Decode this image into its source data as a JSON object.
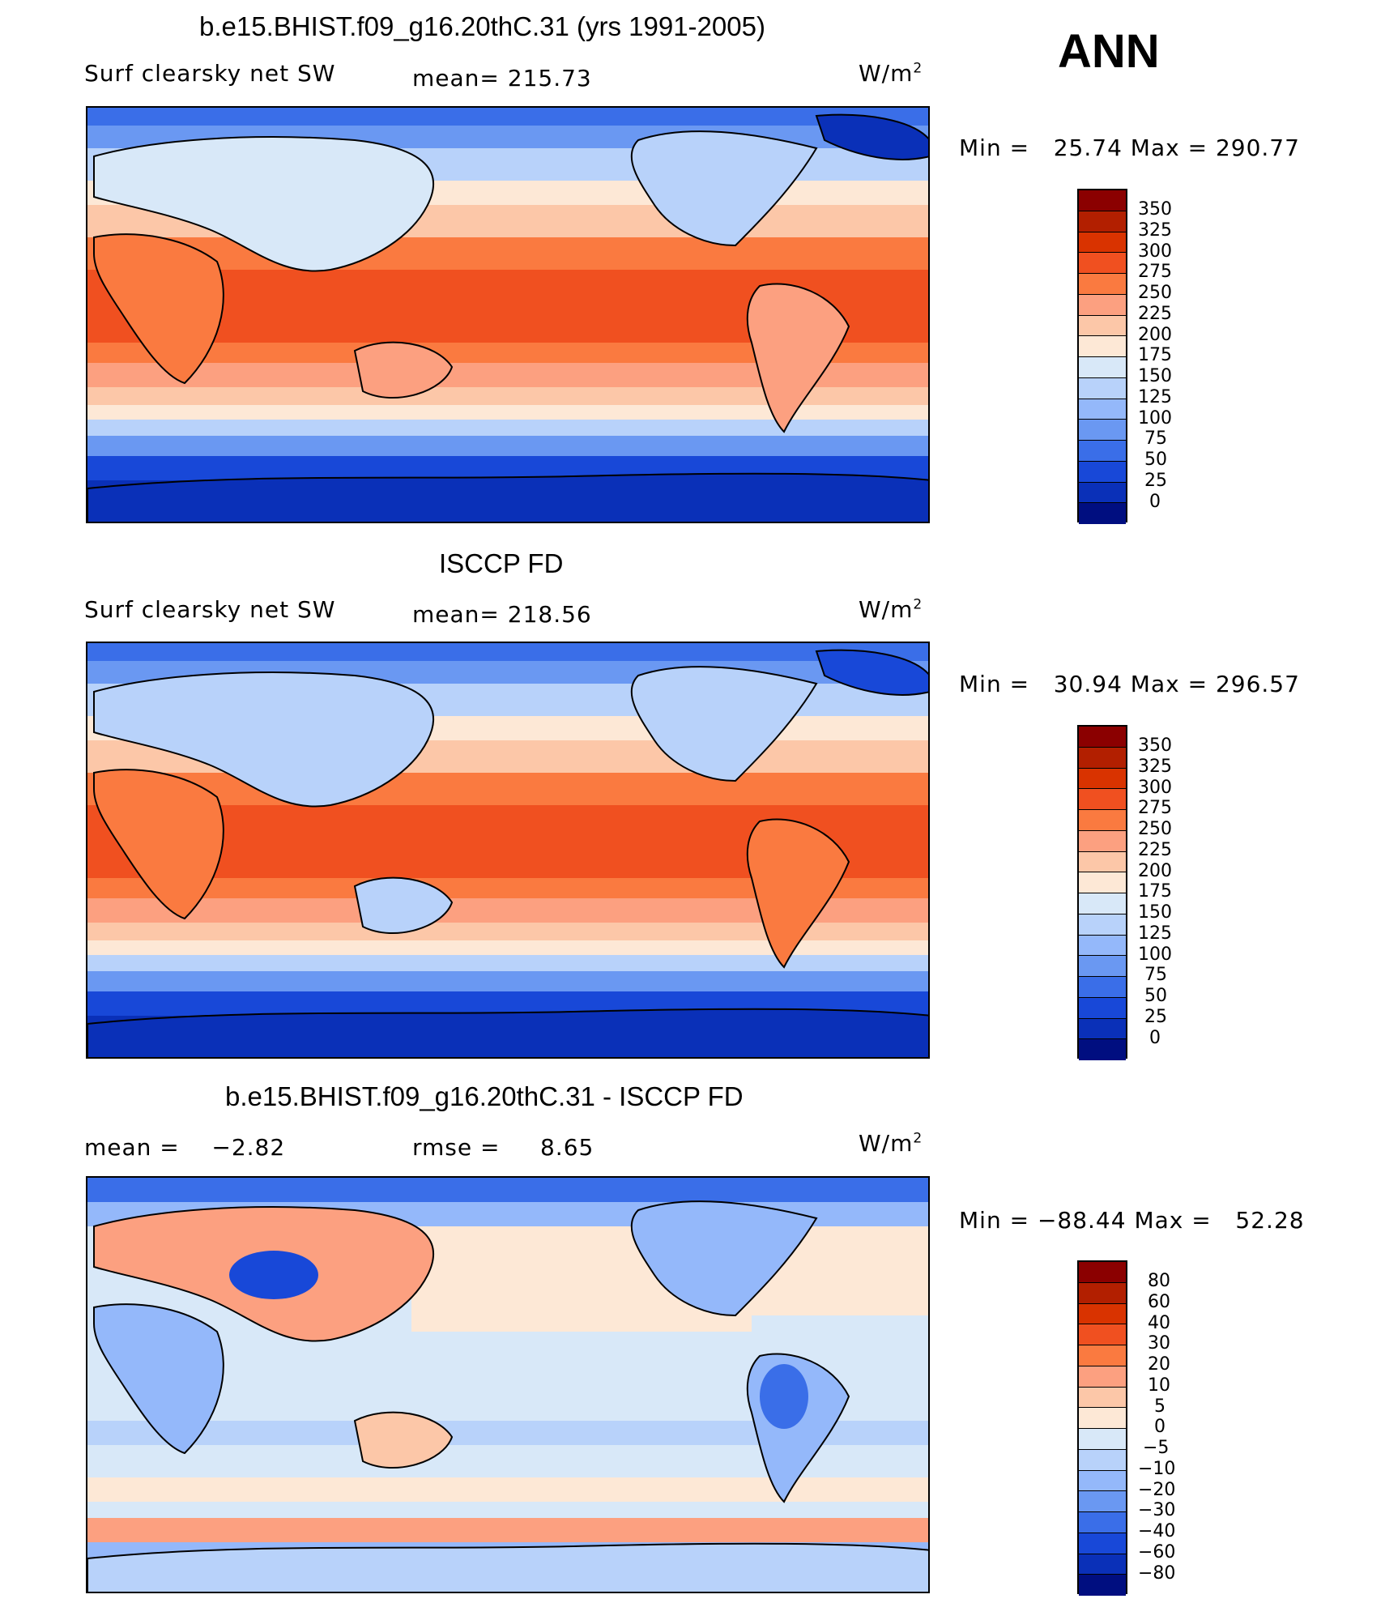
{
  "header": {
    "season": "ANN",
    "units_sup": "2",
    "units_base": "W/m"
  },
  "panel1": {
    "title": "b.e15.BHIST.f09_g16.20thC.31 (yrs 1991-2005)",
    "variable": "Surf clearsky net SW",
    "stat": "mean= 215.73",
    "minmax": "Min =   25.74 Max = 290.77"
  },
  "panel2": {
    "title": "ISCCP FD",
    "variable": "Surf clearsky net SW",
    "stat": "mean= 218.56",
    "minmax": "Min =   30.94 Max = 296.57"
  },
  "panel3": {
    "title": "b.e15.BHIST.f09_g16.20thC.31 - ISCCP FD",
    "stat_mean": "mean =    −2.82",
    "stat_rmse": "rmse =     8.65",
    "minmax": "Min = −88.44 Max =   52.28"
  },
  "colorbar_abs": {
    "labels": [
      "350",
      "325",
      "300",
      "275",
      "250",
      "225",
      "200",
      "175",
      "150",
      "125",
      "100",
      "75",
      "50",
      "25",
      "0"
    ],
    "colors": [
      "#8b0000",
      "#b21f00",
      "#d93300",
      "#f05020",
      "#fa7a40",
      "#fca080",
      "#fcc7a8",
      "#fde8d6",
      "#d8e8f8",
      "#b8d2fa",
      "#94b8fa",
      "#6a98f2",
      "#3a6ee8",
      "#1848d8",
      "#0a30b8",
      "#000e80"
    ]
  },
  "colorbar_diff": {
    "labels": [
      "80",
      "60",
      "40",
      "30",
      "20",
      "10",
      "5",
      "0",
      "−5",
      "−10",
      "−20",
      "−30",
      "−40",
      "−60",
      "−80"
    ],
    "colors": [
      "#8b0000",
      "#b21f00",
      "#d93300",
      "#f05020",
      "#fa7a40",
      "#fca080",
      "#fcc7a8",
      "#fde8d6",
      "#d8e8f8",
      "#b8d2fa",
      "#94b8fa",
      "#6a98f2",
      "#3a6ee8",
      "#1848d8",
      "#0a30b8",
      "#000e80"
    ]
  }
}
